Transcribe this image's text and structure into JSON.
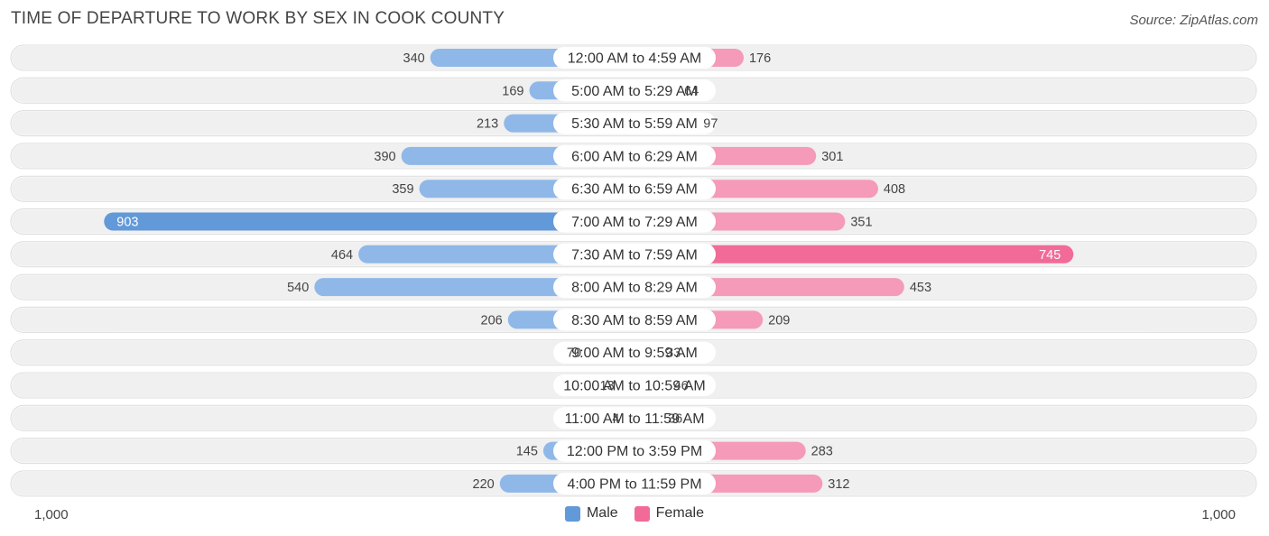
{
  "header": {
    "title": "TIME OF DEPARTURE TO WORK BY SEX IN COOK COUNTY",
    "source": "Source: ZipAtlas.com"
  },
  "axis": {
    "left_label": "1,000",
    "right_label": "1,000"
  },
  "legend": {
    "male": "Male",
    "female": "Female"
  },
  "colors": {
    "male": "#8fb8e8",
    "male_highlight": "#6199d9",
    "female": "#f59ab8",
    "female_highlight": "#f26a97",
    "row_bg": "#f0f0f0"
  },
  "chart_data": {
    "type": "bar",
    "orientation": "horizontal-diverging",
    "title": "TIME OF DEPARTURE TO WORK BY SEX IN COOK COUNTY",
    "xlim": [
      -1000,
      1000
    ],
    "categories": [
      "12:00 AM to 4:59 AM",
      "5:00 AM to 5:29 AM",
      "5:30 AM to 5:59 AM",
      "6:00 AM to 6:29 AM",
      "6:30 AM to 6:59 AM",
      "7:00 AM to 7:29 AM",
      "7:30 AM to 7:59 AM",
      "8:00 AM to 8:29 AM",
      "8:30 AM to 8:59 AM",
      "9:00 AM to 9:59 AM",
      "10:00 AM to 10:59 AM",
      "11:00 AM to 11:59 AM",
      "12:00 PM to 3:59 PM",
      "4:00 PM to 11:59 PM"
    ],
    "series": [
      {
        "name": "Male",
        "values": [
          340,
          169,
          213,
          390,
          359,
          903,
          464,
          540,
          206,
          70,
          13,
          4,
          145,
          220
        ]
      },
      {
        "name": "Female",
        "values": [
          176,
          64,
          97,
          301,
          408,
          351,
          745,
          453,
          209,
          33,
          46,
          36,
          283,
          312
        ]
      }
    ],
    "legend_position": "bottom-center"
  }
}
